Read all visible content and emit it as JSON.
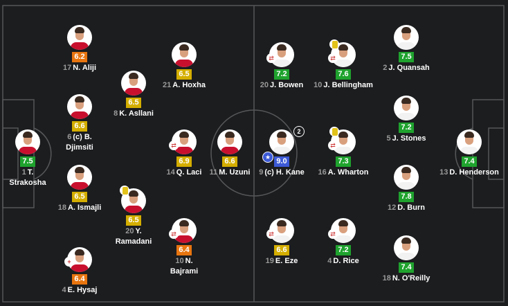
{
  "colors": {
    "orange": "#e8750f",
    "yellow": "#d4ae00",
    "green": "#1fa32e",
    "blue": "#3c5ad6",
    "pitch": "#1c1d1f",
    "lines": "#555759"
  },
  "home_team": {
    "players": [
      {
        "number": "17",
        "name": "N. Aliji",
        "rating": "6.2",
        "color": "orange",
        "icons": []
      },
      {
        "number": "21",
        "name": "A. Hoxha",
        "rating": "6.5",
        "color": "yellow",
        "icons": []
      },
      {
        "number": "8",
        "name": "K. Asllani",
        "rating": "6.5",
        "color": "yellow",
        "icons": []
      },
      {
        "number": "6",
        "name": "(c) B.",
        "name2": "Djimsiti",
        "rating": "6.6",
        "color": "yellow",
        "icons": []
      },
      {
        "number": "1",
        "name": "T.",
        "name2": "Strakosha",
        "rating": "7.5",
        "color": "green",
        "icons": []
      },
      {
        "number": "14",
        "name": "Q. Laci",
        "rating": "6.9",
        "color": "yellow",
        "icons": [
          "substitution-icon"
        ]
      },
      {
        "number": "11",
        "name": "M. Uzuni",
        "rating": "6.6",
        "color": "yellow",
        "icons": []
      },
      {
        "number": "18",
        "name": "A. Ismajli",
        "rating": "6.5",
        "color": "yellow",
        "icons": []
      },
      {
        "number": "20",
        "name": "Y.",
        "name2": "Ramadani",
        "rating": "6.5",
        "color": "yellow",
        "icons": [
          "yellow-card-icon"
        ]
      },
      {
        "number": "10",
        "name": "N.",
        "name2": "Bajrami",
        "rating": "6.4",
        "color": "orange",
        "icons": [
          "substitution-icon"
        ]
      },
      {
        "number": "4",
        "name": "E. Hysaj",
        "rating": "6.4",
        "color": "orange",
        "icons": [
          "injury-substitution-icon"
        ]
      }
    ]
  },
  "away_team": {
    "players": [
      {
        "number": "20",
        "name": "J. Bowen",
        "rating": "7.2",
        "color": "green",
        "icons": [
          "substitution-icon"
        ]
      },
      {
        "number": "10",
        "name": "J. Bellingham",
        "rating": "7.6",
        "color": "green",
        "icons": [
          "substitution-icon",
          "yellow-card-icon"
        ]
      },
      {
        "number": "2",
        "name": "J. Quansah",
        "rating": "7.5",
        "color": "green",
        "icons": []
      },
      {
        "number": "5",
        "name": "J. Stones",
        "rating": "7.2",
        "color": "green",
        "icons": []
      },
      {
        "number": "9",
        "name": "(c) H. Kane",
        "rating": "9.0",
        "color": "blue",
        "icons": [
          "star-icon",
          "goals-icon"
        ],
        "goals": "2"
      },
      {
        "number": "16",
        "name": "A. Wharton",
        "rating": "7.3",
        "color": "green",
        "icons": [
          "substitution-icon",
          "yellow-card-icon"
        ]
      },
      {
        "number": "13",
        "name": "D. Henderson",
        "rating": "7.4",
        "color": "green",
        "icons": []
      },
      {
        "number": "12",
        "name": "D. Burn",
        "rating": "7.8",
        "color": "green",
        "icons": []
      },
      {
        "number": "19",
        "name": "E. Eze",
        "rating": "6.6",
        "color": "yellow",
        "icons": [
          "substitution-icon"
        ]
      },
      {
        "number": "4",
        "name": "D. Rice",
        "rating": "7.2",
        "color": "green",
        "icons": [
          "substitution-icon"
        ]
      },
      {
        "number": "18",
        "name": "N. O'Reilly",
        "rating": "7.4",
        "color": "green",
        "icons": []
      }
    ]
  }
}
